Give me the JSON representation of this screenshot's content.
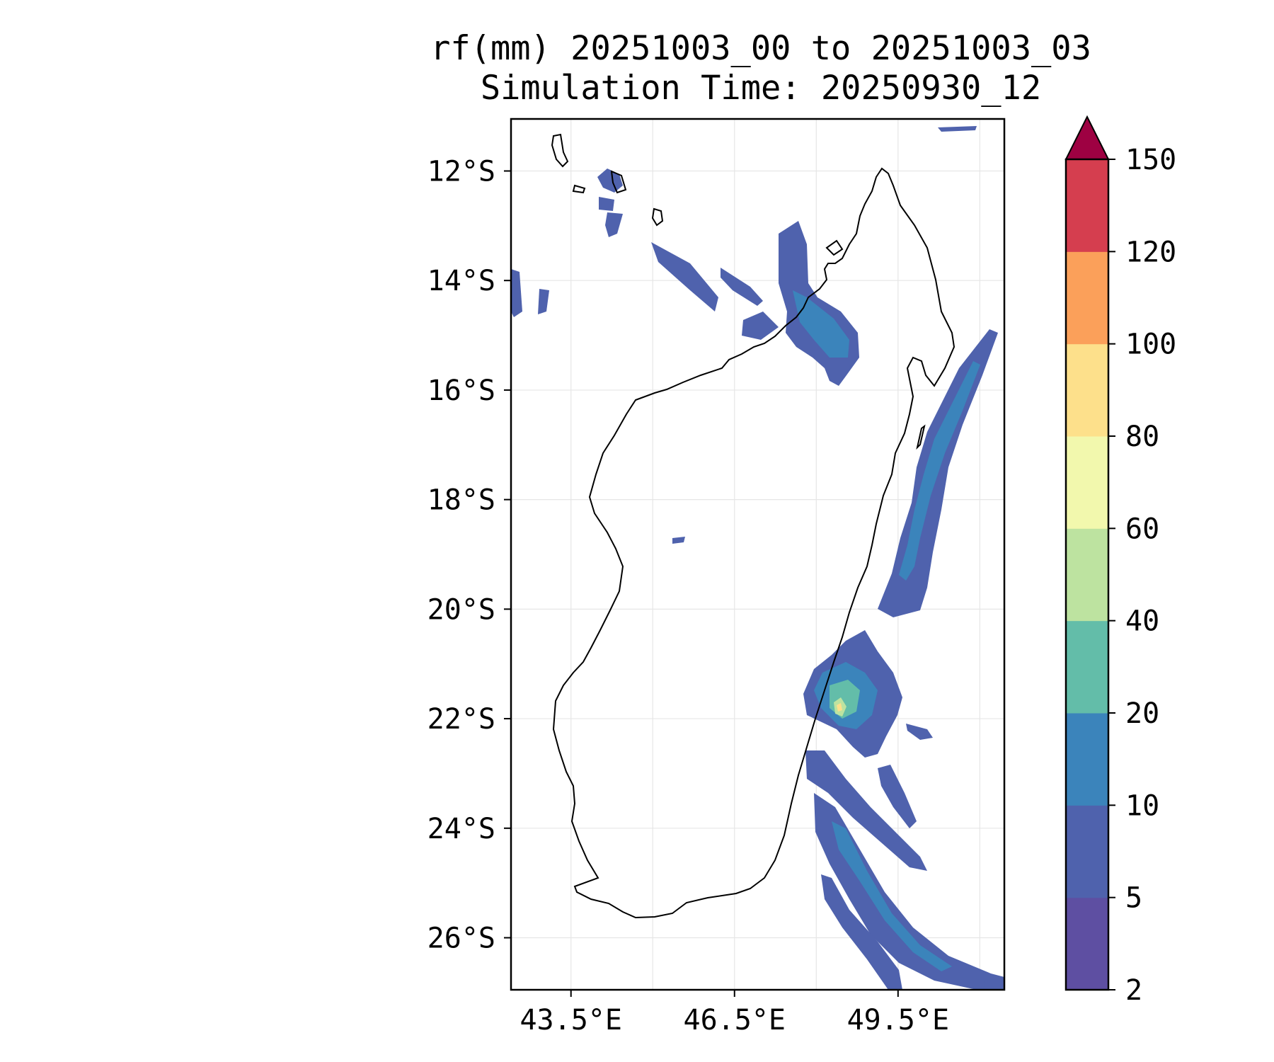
{
  "title": {
    "line1": "rf(mm) 20251003_00 to 20251003_03",
    "line2": "Simulation Time: 20250930_12"
  },
  "map": {
    "lon_range": [
      42.4,
      51.45
    ],
    "lat_range": [
      -26.95,
      -11.05
    ],
    "lat_ticks": [
      {
        "label": "12°S",
        "lat": -12
      },
      {
        "label": "14°S",
        "lat": -14
      },
      {
        "label": "16°S",
        "lat": -16
      },
      {
        "label": "18°S",
        "lat": -18
      },
      {
        "label": "20°S",
        "lat": -20
      },
      {
        "label": "22°S",
        "lat": -22
      },
      {
        "label": "24°S",
        "lat": -24
      },
      {
        "label": "26°S",
        "lat": -26
      }
    ],
    "lon_ticks": [
      {
        "label": "43.5°E",
        "lon": 43.5
      },
      {
        "label": "46.5°E",
        "lon": 46.5
      },
      {
        "label": "49.5°E",
        "lon": 49.5
      }
    ],
    "grid": true
  },
  "colorbar": {
    "levels": [
      "2",
      "5",
      "10",
      "20",
      "40",
      "60",
      "80",
      "100",
      "120",
      "150"
    ],
    "colors": [
      "#5e4fa2",
      "#4f62ad",
      "#3b84bb",
      "#63bda9",
      "#bde3a0",
      "#f2f8ad",
      "#fde08b",
      "#fba05a",
      "#d53e4f"
    ],
    "extend_color": "#9e0142",
    "extend": "max"
  },
  "colors": {
    "coast": "#000000",
    "grid": "#e6e6e6"
  }
}
